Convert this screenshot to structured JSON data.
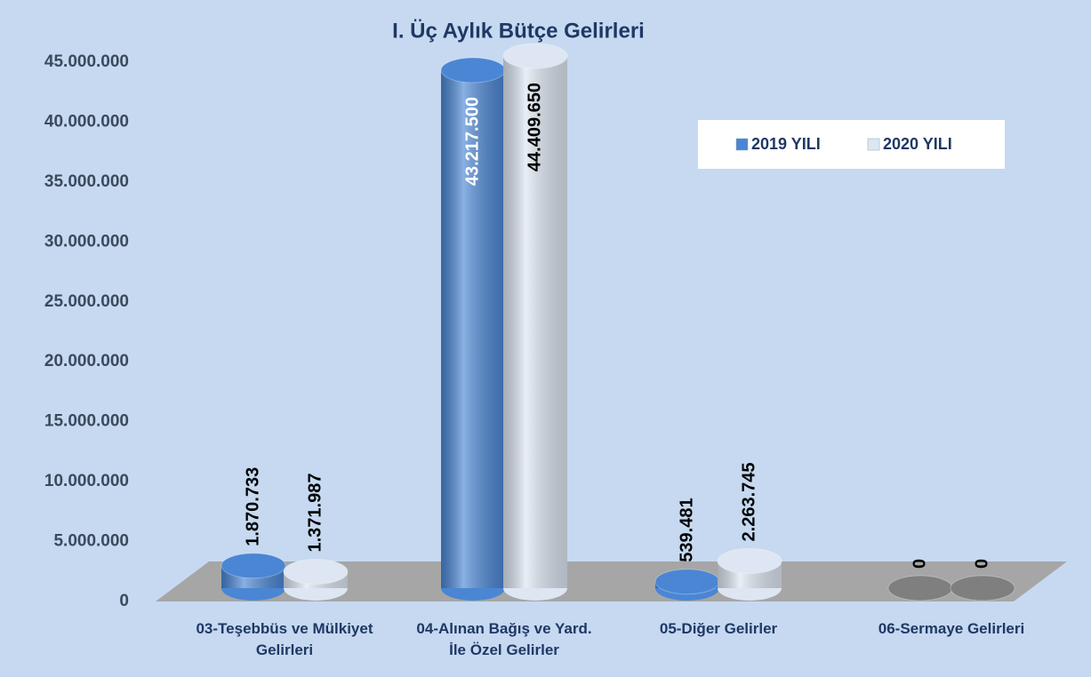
{
  "chart_data": {
    "type": "bar3d",
    "title": "I. Üç Aylık Bütçe Gelirleri",
    "categories": [
      "03-Teşebbüs ve Mülkiyet Gelirleri",
      "04-Alınan Bağış ve Yard. İle Özel Gelirler",
      "05-Diğer Gelirler",
      "06-Sermaye Gelirleri"
    ],
    "series": [
      {
        "name": "2019 YILI",
        "color": "#4a86d4",
        "values": [
          1870733,
          43217500,
          539481,
          0
        ],
        "value_labels": [
          "1.870.733",
          "43.217.500",
          "539.481",
          "0"
        ]
      },
      {
        "name": "2020 YILI",
        "color": "#dde6f2",
        "values": [
          1371987,
          44409650,
          2263745,
          0
        ],
        "value_labels": [
          "1.371.987",
          "44.409.650",
          "2.263.745",
          "0"
        ]
      }
    ],
    "ylim": [
      0,
      45000000
    ],
    "yticks": [
      0,
      {
        "value": 5000000,
        "label": "5.000.000"
      },
      {
        "value": 10000000,
        "label": "10.000.000"
      },
      {
        "value": 15000000,
        "label": "15.000.000"
      },
      {
        "value": 20000000,
        "label": "20.000.000"
      },
      {
        "value": 25000000,
        "label": "25.000.000"
      },
      {
        "value": 30000000,
        "label": "30.000.000"
      },
      {
        "value": 35000000,
        "label": "35.000.000"
      },
      {
        "value": 40000000,
        "label": "40.000.000"
      },
      {
        "value": 45000000,
        "label": "45.000.000"
      }
    ],
    "legend": "upper right"
  }
}
